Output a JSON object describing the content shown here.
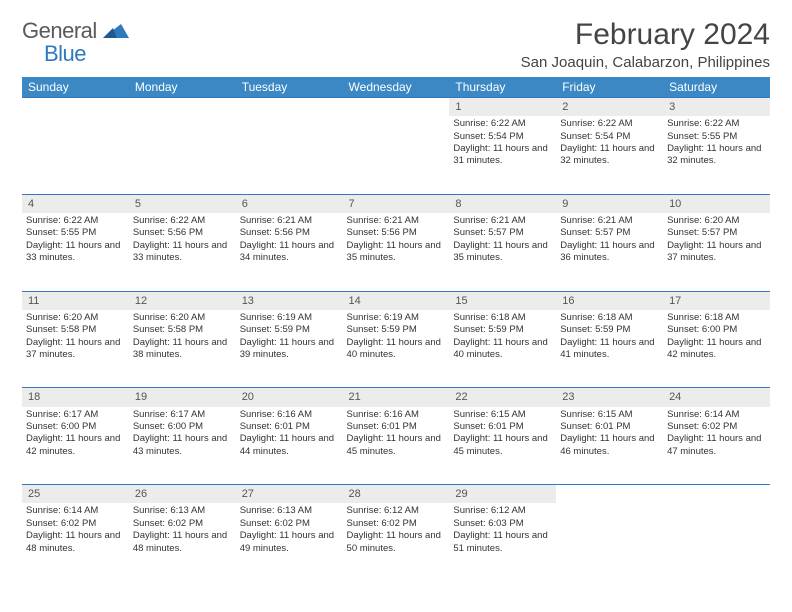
{
  "brand": {
    "general": "General",
    "blue": "Blue"
  },
  "title": "February 2024",
  "location": "San Joaquin, Calabarzon, Philippines",
  "colors": {
    "header_bg": "#3b88c4",
    "header_text": "#ffffff",
    "rule": "#2f7abf",
    "daynum_bg": "#ececec",
    "text": "#333333",
    "logo_blue": "#2f7abf",
    "logo_gray": "#5a5a5a"
  },
  "weekdays": [
    "Sunday",
    "Monday",
    "Tuesday",
    "Wednesday",
    "Thursday",
    "Friday",
    "Saturday"
  ],
  "weeks": [
    {
      "nums": [
        "",
        "",
        "",
        "",
        "1",
        "2",
        "3"
      ],
      "cells": [
        null,
        null,
        null,
        null,
        {
          "sunrise": "6:22 AM",
          "sunset": "5:54 PM",
          "daylight": "11 hours and 31 minutes."
        },
        {
          "sunrise": "6:22 AM",
          "sunset": "5:54 PM",
          "daylight": "11 hours and 32 minutes."
        },
        {
          "sunrise": "6:22 AM",
          "sunset": "5:55 PM",
          "daylight": "11 hours and 32 minutes."
        }
      ]
    },
    {
      "nums": [
        "4",
        "5",
        "6",
        "7",
        "8",
        "9",
        "10"
      ],
      "cells": [
        {
          "sunrise": "6:22 AM",
          "sunset": "5:55 PM",
          "daylight": "11 hours and 33 minutes."
        },
        {
          "sunrise": "6:22 AM",
          "sunset": "5:56 PM",
          "daylight": "11 hours and 33 minutes."
        },
        {
          "sunrise": "6:21 AM",
          "sunset": "5:56 PM",
          "daylight": "11 hours and 34 minutes."
        },
        {
          "sunrise": "6:21 AM",
          "sunset": "5:56 PM",
          "daylight": "11 hours and 35 minutes."
        },
        {
          "sunrise": "6:21 AM",
          "sunset": "5:57 PM",
          "daylight": "11 hours and 35 minutes."
        },
        {
          "sunrise": "6:21 AM",
          "sunset": "5:57 PM",
          "daylight": "11 hours and 36 minutes."
        },
        {
          "sunrise": "6:20 AM",
          "sunset": "5:57 PM",
          "daylight": "11 hours and 37 minutes."
        }
      ]
    },
    {
      "nums": [
        "11",
        "12",
        "13",
        "14",
        "15",
        "16",
        "17"
      ],
      "cells": [
        {
          "sunrise": "6:20 AM",
          "sunset": "5:58 PM",
          "daylight": "11 hours and 37 minutes."
        },
        {
          "sunrise": "6:20 AM",
          "sunset": "5:58 PM",
          "daylight": "11 hours and 38 minutes."
        },
        {
          "sunrise": "6:19 AM",
          "sunset": "5:59 PM",
          "daylight": "11 hours and 39 minutes."
        },
        {
          "sunrise": "6:19 AM",
          "sunset": "5:59 PM",
          "daylight": "11 hours and 40 minutes."
        },
        {
          "sunrise": "6:18 AM",
          "sunset": "5:59 PM",
          "daylight": "11 hours and 40 minutes."
        },
        {
          "sunrise": "6:18 AM",
          "sunset": "5:59 PM",
          "daylight": "11 hours and 41 minutes."
        },
        {
          "sunrise": "6:18 AM",
          "sunset": "6:00 PM",
          "daylight": "11 hours and 42 minutes."
        }
      ]
    },
    {
      "nums": [
        "18",
        "19",
        "20",
        "21",
        "22",
        "23",
        "24"
      ],
      "cells": [
        {
          "sunrise": "6:17 AM",
          "sunset": "6:00 PM",
          "daylight": "11 hours and 42 minutes."
        },
        {
          "sunrise": "6:17 AM",
          "sunset": "6:00 PM",
          "daylight": "11 hours and 43 minutes."
        },
        {
          "sunrise": "6:16 AM",
          "sunset": "6:01 PM",
          "daylight": "11 hours and 44 minutes."
        },
        {
          "sunrise": "6:16 AM",
          "sunset": "6:01 PM",
          "daylight": "11 hours and 45 minutes."
        },
        {
          "sunrise": "6:15 AM",
          "sunset": "6:01 PM",
          "daylight": "11 hours and 45 minutes."
        },
        {
          "sunrise": "6:15 AM",
          "sunset": "6:01 PM",
          "daylight": "11 hours and 46 minutes."
        },
        {
          "sunrise": "6:14 AM",
          "sunset": "6:02 PM",
          "daylight": "11 hours and 47 minutes."
        }
      ]
    },
    {
      "nums": [
        "25",
        "26",
        "27",
        "28",
        "29",
        "",
        ""
      ],
      "cells": [
        {
          "sunrise": "6:14 AM",
          "sunset": "6:02 PM",
          "daylight": "11 hours and 48 minutes."
        },
        {
          "sunrise": "6:13 AM",
          "sunset": "6:02 PM",
          "daylight": "11 hours and 48 minutes."
        },
        {
          "sunrise": "6:13 AM",
          "sunset": "6:02 PM",
          "daylight": "11 hours and 49 minutes."
        },
        {
          "sunrise": "6:12 AM",
          "sunset": "6:02 PM",
          "daylight": "11 hours and 50 minutes."
        },
        {
          "sunrise": "6:12 AM",
          "sunset": "6:03 PM",
          "daylight": "11 hours and 51 minutes."
        },
        null,
        null
      ]
    }
  ],
  "labels": {
    "sunrise": "Sunrise:",
    "sunset": "Sunset:",
    "daylight": "Daylight:"
  }
}
